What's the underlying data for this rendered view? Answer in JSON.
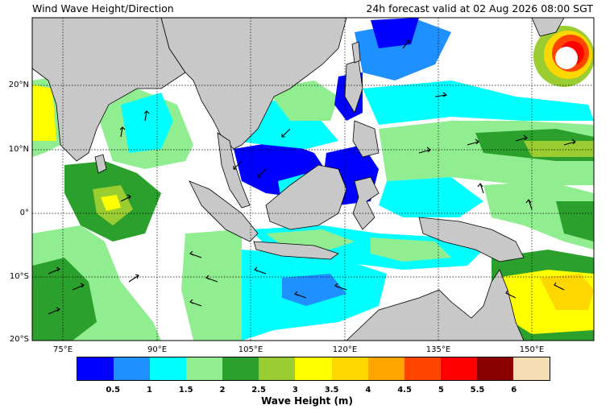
{
  "header": {
    "title": "Wind Wave Height/Direction",
    "valid_time": "24h forecast valid at 02 Aug 2026 08:00 SGT"
  },
  "map": {
    "lat_labels": [
      "20°N",
      "10°N",
      "0°",
      "10°S",
      "20°S"
    ],
    "lon_labels": [
      "75°E",
      "90°E",
      "105°E",
      "120°E",
      "135°E",
      "150°E"
    ],
    "colors": {
      "land": "#c8c8c8",
      "water_calm": "#ffffff",
      "grid": "#000000"
    }
  },
  "colorbar": {
    "label": "Wave Height (m)",
    "ticks": [
      "0.5",
      "1",
      "1.5",
      "2",
      "2.5",
      "3",
      "3.5",
      "4",
      "4.5",
      "5",
      "5.5",
      "6"
    ],
    "colors": [
      "#0000ff",
      "#1e90ff",
      "#00ffff",
      "#90ee90",
      "#2ca02c",
      "#9acd32",
      "#ffff00",
      "#ffd700",
      "#ffa500",
      "#ff4500",
      "#ff0000",
      "#8b0000",
      "#f5deb3"
    ]
  }
}
